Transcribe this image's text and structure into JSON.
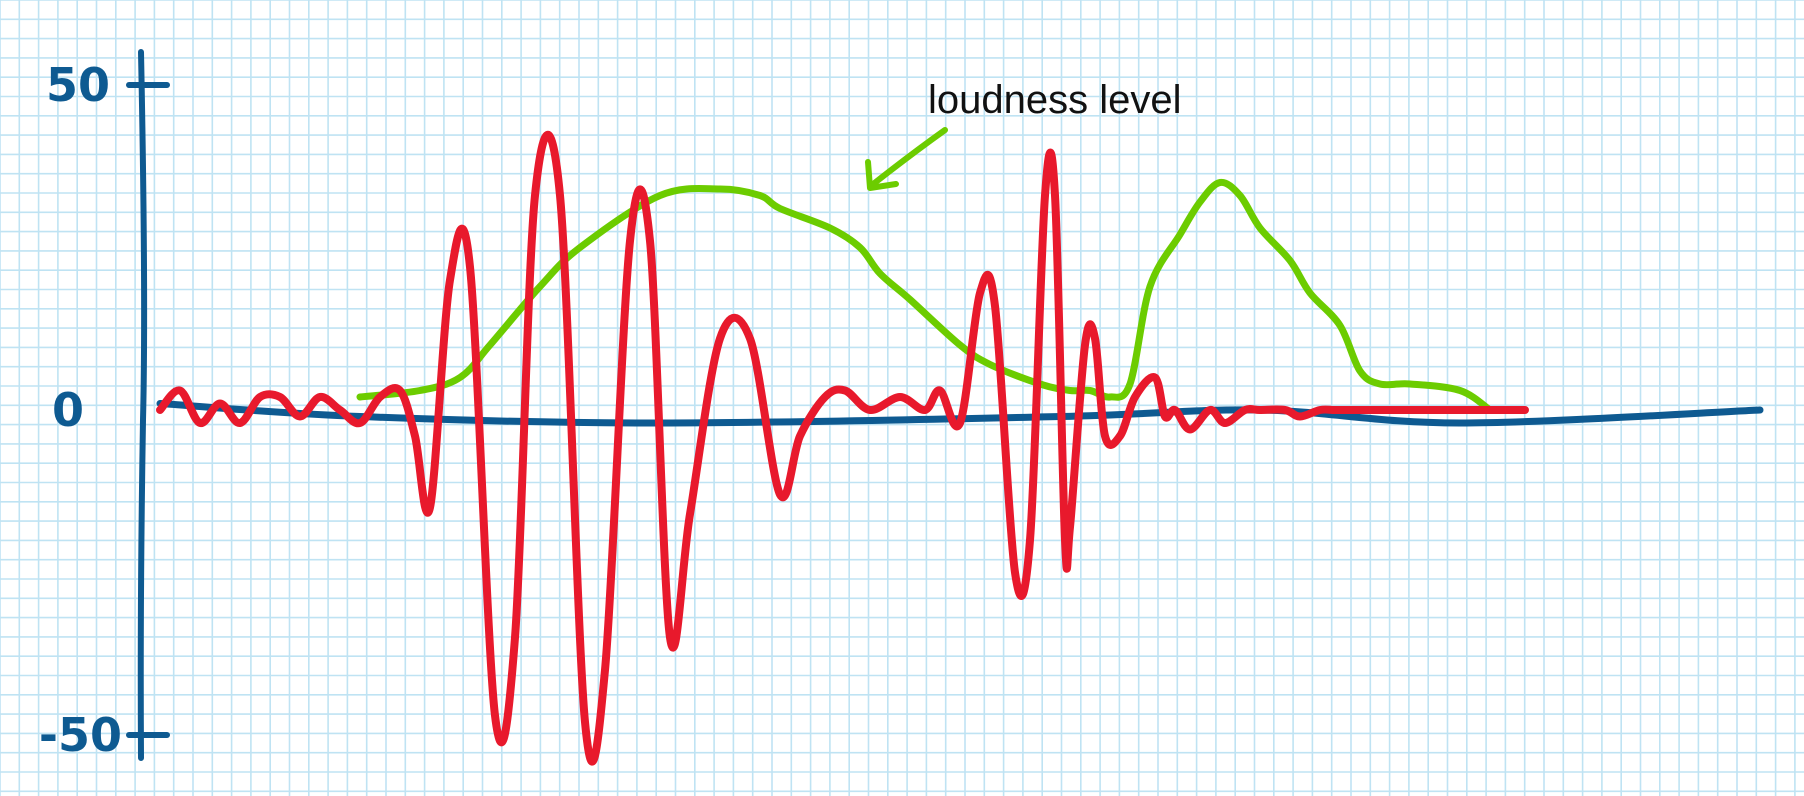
{
  "chart_data": {
    "type": "line",
    "title": "",
    "xlabel": "",
    "ylabel": "",
    "ylim": [
      -60,
      60
    ],
    "grid": true,
    "y_ticks": [
      {
        "value": 50,
        "label": "50"
      },
      {
        "value": 0,
        "label": "0"
      },
      {
        "value": -50,
        "label": "-50"
      }
    ],
    "annotations": [
      {
        "text": "loudness level",
        "points_to_series": 1
      }
    ],
    "series": [
      {
        "role": "baseline",
        "color": "#0e5a91",
        "x": [
          0,
          200,
          500,
          900,
          1100,
          1300,
          1600
        ],
        "y": [
          1,
          -1,
          -2,
          -1,
          0,
          -2,
          0
        ]
      },
      {
        "role": "envelope",
        "color": "#6ccc00",
        "x": [
          200,
          260,
          300,
          330,
          380,
          420,
          500,
          560,
          600,
          620,
          670,
          700,
          720,
          750,
          800,
          830,
          880,
          910,
          930,
          950,
          970,
          990,
          1020,
          1040,
          1060,
          1080,
          1100,
          1130,
          1150,
          1180,
          1200,
          1220,
          1250,
          1300,
          1330
        ],
        "y": [
          2,
          3,
          5,
          10,
          19,
          25,
          33,
          34,
          33,
          31,
          28,
          25,
          21,
          17,
          10,
          7,
          4,
          3,
          3,
          2,
          4,
          19,
          27,
          32,
          35,
          33,
          28,
          23,
          18,
          13,
          6,
          4,
          4,
          3,
          0
        ]
      },
      {
        "role": "waveform",
        "color": "#e8192c",
        "x": [
          0,
          20,
          40,
          60,
          80,
          100,
          120,
          140,
          160,
          180,
          200,
          220,
          240,
          255,
          270,
          290,
          310,
          335,
          355,
          375,
          400,
          425,
          445,
          470,
          490,
          510,
          530,
          560,
          590,
          620,
          640,
          665,
          685,
          710,
          740,
          765,
          780,
          800,
          820,
          835,
          855,
          870,
          885,
          895,
          905,
          910,
          925,
          935,
          945,
          960,
          975,
          995,
          1005,
          1015,
          1030,
          1050,
          1065,
          1085,
          1100,
          1125,
          1140,
          1160,
          1175,
          1195,
          1210,
          1230,
          1250,
          1270,
          1290,
          1310,
          1330,
          1350,
          1365
        ],
        "y": [
          0,
          3,
          -2,
          1,
          -2,
          2,
          2,
          -1,
          2,
          0,
          -2,
          2,
          3,
          -4,
          -15,
          20,
          22,
          -47,
          -35,
          33,
          33,
          -48,
          -40,
          26,
          26,
          -35,
          -16,
          11,
          11,
          -13,
          -4,
          2,
          3,
          0,
          2,
          0,
          3,
          -2,
          18,
          16,
          -25,
          -20,
          33,
          33,
          -20,
          -18,
          10,
          11,
          -4,
          -4,
          2,
          5,
          -1,
          0,
          -3,
          0,
          -2,
          0,
          0,
          0,
          -1,
          0,
          0,
          0,
          0,
          0,
          0,
          0,
          0,
          0,
          0,
          0,
          0
        ]
      }
    ]
  }
}
